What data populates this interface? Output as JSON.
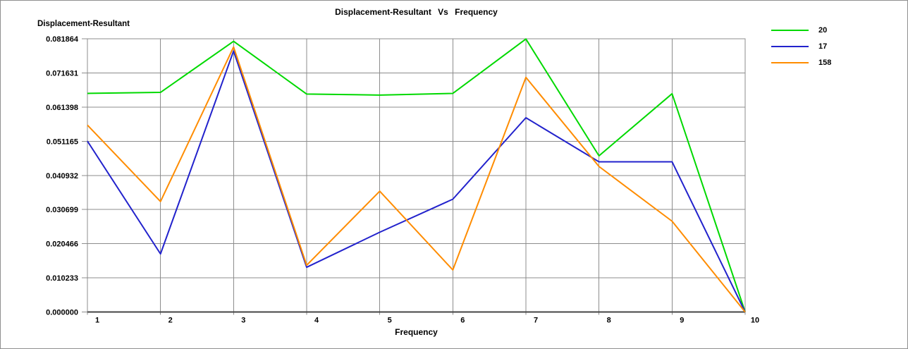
{
  "chart_data": {
    "type": "line",
    "title": "Displacement-Resultant Vs Frequency",
    "xlabel": "Frequency",
    "ylabel": "Displacement-Resultant",
    "x": [
      1,
      2,
      3,
      4,
      5,
      6,
      7,
      8,
      9,
      10
    ],
    "x_tick_labels": [
      "1",
      "2",
      "3",
      "4",
      "5",
      "6",
      "7",
      "8",
      "9",
      "10"
    ],
    "y_tick_labels": [
      "0.000000",
      "0.010233",
      "0.020466",
      "0.030699",
      "0.040932",
      "0.051165",
      "0.061398",
      "0.071631",
      "0.081864"
    ],
    "xlim": [
      1,
      10
    ],
    "ylim": [
      0,
      0.081864
    ],
    "grid": true,
    "legend_position": "top-right",
    "series": [
      {
        "name": "20",
        "color": "#00d900",
        "values": [
          0.0655,
          0.0658,
          0.0811,
          0.0653,
          0.065,
          0.0655,
          0.0818,
          0.0468,
          0.0654,
          0.0
        ]
      },
      {
        "name": "17",
        "color": "#2222cc",
        "values": [
          0.0512,
          0.0174,
          0.0782,
          0.0134,
          0.0239,
          0.0338,
          0.0582,
          0.045,
          0.045,
          0.0
        ]
      },
      {
        "name": "158",
        "color": "#ff8c00",
        "values": [
          0.056,
          0.0331,
          0.0794,
          0.014,
          0.0362,
          0.0126,
          0.0703,
          0.0436,
          0.0272,
          0.0
        ]
      }
    ]
  },
  "colors": {
    "grid": "#8c8c8c",
    "axis": "#444444",
    "text": "#000000",
    "background": "#ffffff",
    "frame": "#8f8f8f"
  }
}
